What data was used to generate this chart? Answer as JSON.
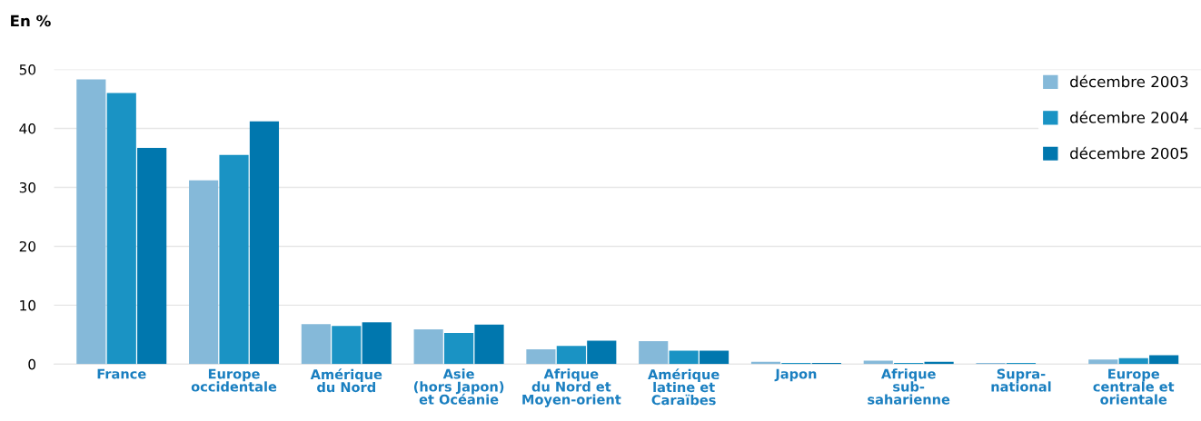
{
  "chart_data": {
    "type": "bar",
    "ylabel": "En %",
    "categories": [
      "France",
      "Europe\noccidentale",
      "Amérique\ndu Nord",
      "Asie\n(hors Japon)\net Océanie",
      "Afrique\ndu Nord et\nMoyen-orient",
      "Amérique\nlatine et\nCaraïbes",
      "Japon",
      "Afrique\nsub-\nsaharienne",
      "Supra-\nnational",
      "Europe\ncentrale et\norientale"
    ],
    "series": [
      {
        "name": "décembre 2003",
        "color": "#85b9d9",
        "values": [
          48.3,
          31.2,
          6.8,
          5.9,
          2.5,
          3.9,
          0.4,
          0.6,
          0.2,
          0.8
        ]
      },
      {
        "name": "décembre 2004",
        "color": "#1a93c4",
        "values": [
          46.0,
          35.5,
          6.5,
          5.3,
          3.1,
          2.3,
          0.2,
          0.2,
          0.2,
          1.0
        ]
      },
      {
        "name": "décembre 2005",
        "color": "#0077ae",
        "values": [
          36.7,
          41.2,
          7.1,
          6.7,
          4.0,
          2.3,
          0.2,
          0.4,
          0,
          1.5
        ]
      }
    ],
    "ylim": [
      0,
      50
    ],
    "yticks": [
      0,
      10,
      20,
      30,
      40,
      50
    ],
    "grid": "y",
    "legend": "top right"
  }
}
